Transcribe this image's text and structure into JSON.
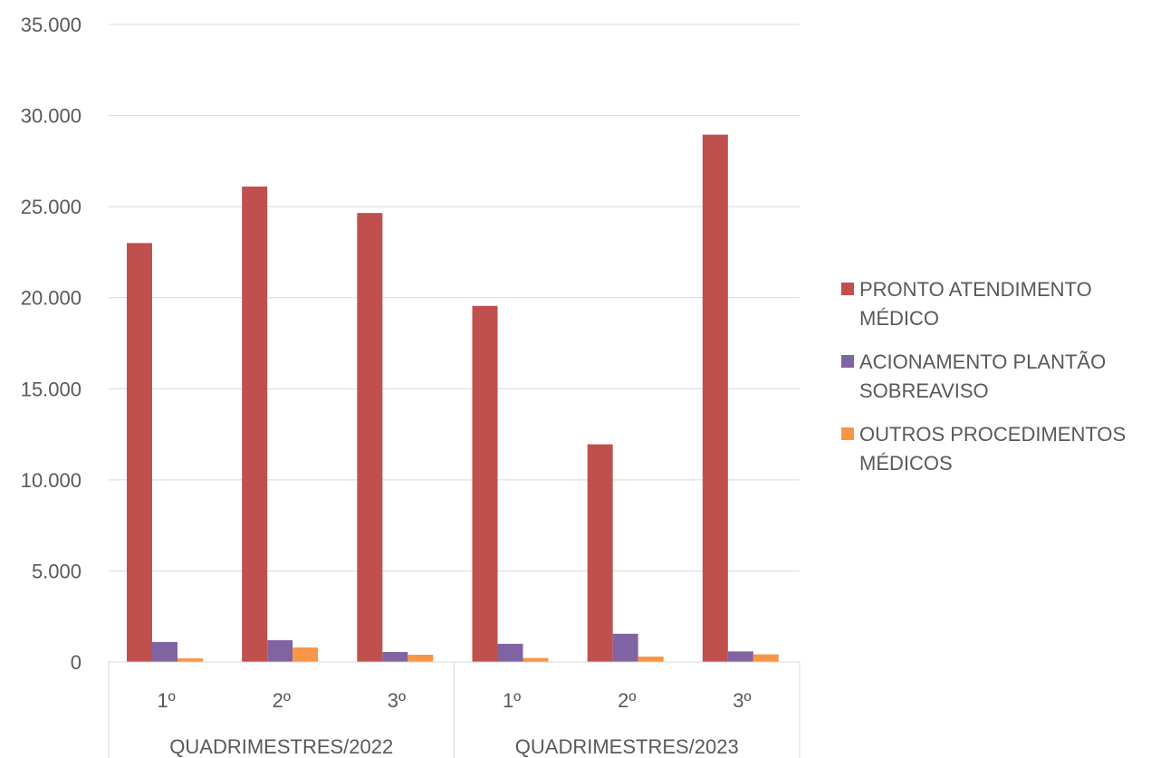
{
  "chart_data": {
    "type": "bar",
    "title": "",
    "xlabel": "",
    "ylabel": "",
    "ylim": [
      0,
      35000
    ],
    "yticks": [
      "0",
      "5.000",
      "10.000",
      "15.000",
      "20.000",
      "25.000",
      "30.000",
      "35.000"
    ],
    "grid": true,
    "legend_position": "right",
    "groups": [
      {
        "label": "QUADRIMESTRES/2022",
        "categories": [
          "1º",
          "2º",
          "3º"
        ]
      },
      {
        "label": "QUADRIMESTRES/2023",
        "categories": [
          "1º",
          "2º",
          "3º"
        ]
      }
    ],
    "series": [
      {
        "name": "PRONTO ATENDIMENTO MÉDICO",
        "color": "#C0504D",
        "values": [
          23000,
          26100,
          24650,
          19550,
          11950,
          28950
        ]
      },
      {
        "name": "ACIONAMENTO PLANTÃO SOBREAVISO",
        "color": "#8064A2",
        "values": [
          1100,
          1200,
          550,
          1000,
          1550,
          580
        ]
      },
      {
        "name": "OUTROS PROCEDIMENTOS MÉDICOS",
        "color": "#F79646",
        "values": [
          200,
          800,
          400,
          220,
          300,
          420
        ]
      }
    ]
  }
}
